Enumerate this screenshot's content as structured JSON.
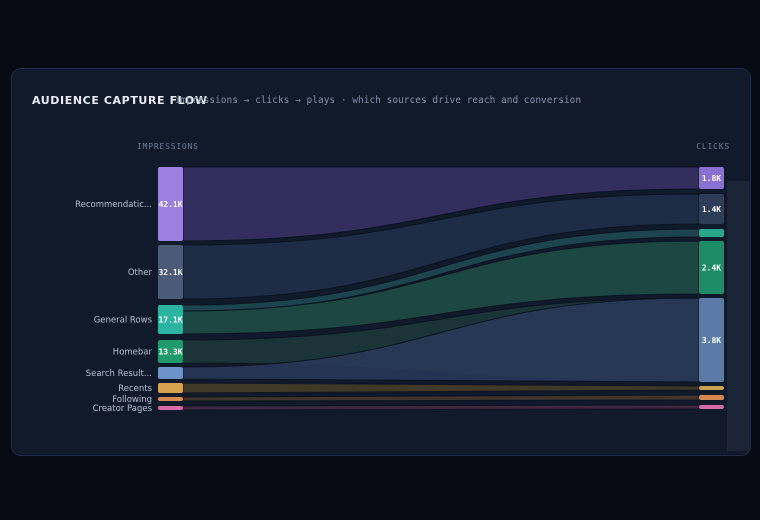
{
  "header": {
    "title": "AUDIENCE CAPTURE FLOW",
    "subtitle": "impressions → clicks → plays · which sources drive reach and conversion"
  },
  "chart_data": {
    "type": "sankey",
    "columns": [
      "IMPRESSIONS",
      "CLICKS"
    ],
    "sources": [
      {
        "name": "Recommendatic...",
        "value": 42.1,
        "label": "42.1K",
        "color": "#9b80e0"
      },
      {
        "name": "Other",
        "value": 32.1,
        "label": "32.1K",
        "color": "#4a5a78"
      },
      {
        "name": "General Rows",
        "value": 17.1,
        "label": "17.1K",
        "color": "#2bb5a0"
      },
      {
        "name": "Homebar",
        "value": 13.3,
        "label": "13.3K",
        "color": "#1f9a6c"
      },
      {
        "name": "Search Result...",
        "value": 4.5,
        "label": "",
        "color": "#6e93c8"
      },
      {
        "name": "Recents",
        "value": 2.5,
        "label": "",
        "color": "#d6a24e"
      },
      {
        "name": "Following",
        "value": 1.0,
        "label": "",
        "color": "#d98a4e"
      },
      {
        "name": "Creator Pages",
        "value": 0.8,
        "label": "",
        "color": "#d86ba8"
      }
    ],
    "clicks": [
      {
        "value": 1.8,
        "label": "1.8K",
        "color": "#8a70d2"
      },
      {
        "value": 1.4,
        "label": "1.4K",
        "color": "#2d3d58"
      },
      {
        "value": 0.4,
        "label": "",
        "color": "#28a88c"
      },
      {
        "value": 2.4,
        "label": "2.4K",
        "color": "#1f8c68"
      },
      {
        "value": 3.8,
        "label": "3.8K",
        "color": "#5a7aa8"
      },
      {
        "value": 0.2,
        "label": "",
        "color": "#c9a052"
      },
      {
        "value": 0.2,
        "label": "",
        "color": "#d58850"
      },
      {
        "value": 0.15,
        "label": "",
        "color": "#cf6aa4"
      }
    ],
    "links": [
      {
        "source": 0,
        "target": 0
      },
      {
        "source": 1,
        "target": 1
      },
      {
        "source": 2,
        "target": 2
      },
      {
        "source": 2,
        "target": 3
      },
      {
        "source": 3,
        "target": 4
      },
      {
        "source": 4,
        "target": 4
      },
      {
        "source": 5,
        "target": 5
      },
      {
        "source": 6,
        "target": 6
      },
      {
        "source": 7,
        "target": 7
      }
    ]
  }
}
